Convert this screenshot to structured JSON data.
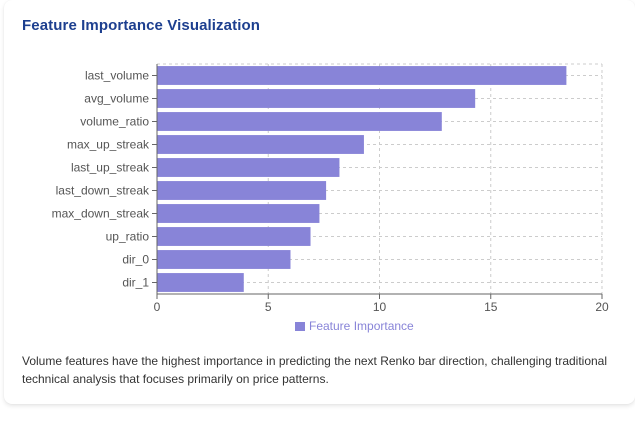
{
  "card": {
    "title": "Feature Importance Visualization",
    "description": "Volume features have the highest importance in predicting the next Renko bar direction, challenging traditional technical analysis that focuses primarily on price patterns."
  },
  "colors": {
    "title": "#1d3f8f",
    "bar": "#8884d8",
    "grid": "#cccccc",
    "axis": "#666666",
    "text": "#555555"
  },
  "chart_data": {
    "type": "bar",
    "orientation": "horizontal",
    "categories": [
      "last_volume",
      "avg_volume",
      "volume_ratio",
      "max_up_streak",
      "last_up_streak",
      "last_down_streak",
      "max_down_streak",
      "up_ratio",
      "dir_0",
      "dir_1"
    ],
    "series": [
      {
        "name": "Feature Importance",
        "values": [
          18.4,
          14.3,
          12.8,
          9.3,
          8.2,
          7.6,
          7.3,
          6.9,
          6.0,
          3.9
        ]
      }
    ],
    "xlim": [
      0,
      20
    ],
    "xticks": [
      "0",
      "5",
      "10",
      "15",
      "20"
    ],
    "grid": true,
    "grid_style": "dashed",
    "legend_position": "bottom-center"
  }
}
